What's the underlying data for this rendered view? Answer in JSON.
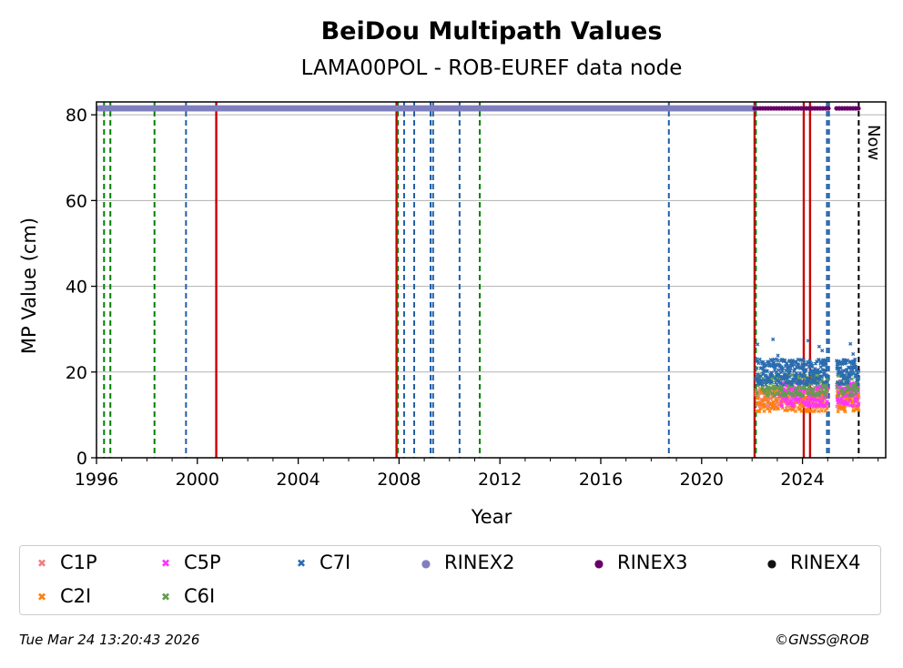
{
  "chart_data": {
    "type": "scatter",
    "title": "BeiDou Multipath Values",
    "subtitle": "LAMA00POL - ROB-EUREF data node",
    "xlabel": "Year",
    "ylabel": "MP Value (cm)",
    "xlim": [
      1996,
      2027.3
    ],
    "ylim": [
      0,
      83
    ],
    "x_ticks": [
      "1996",
      "2000",
      "2004",
      "2008",
      "2012",
      "2016",
      "2020",
      "2024"
    ],
    "y_ticks": [
      "0",
      "20",
      "40",
      "60",
      "80"
    ],
    "grid": "horizontal",
    "now_label": "Now",
    "now_x": 2026.23,
    "series": [
      {
        "name": "C1P",
        "marker": "x",
        "color": "#f08080",
        "x_range": [
          2022.15,
          2026.23
        ],
        "y_center": 14,
        "y_spread": 2.5
      },
      {
        "name": "C2I",
        "marker": "x",
        "color": "#ff7f0e",
        "x_range": [
          2022.15,
          2026.23
        ],
        "y_center": 13.5,
        "y_spread": 2.8
      },
      {
        "name": "C5P",
        "marker": "x",
        "color": "#ff33ff",
        "x_range": [
          2023.1,
          2026.23
        ],
        "y_center": 15,
        "y_spread": 3
      },
      {
        "name": "C6I",
        "marker": "x",
        "color": "#5f9e4f",
        "x_range": [
          2022.15,
          2026.23
        ],
        "y_center": 17,
        "y_spread": 2.5
      },
      {
        "name": "C7I",
        "marker": "x",
        "color": "#2b6cb0",
        "x_range": [
          2022.15,
          2026.23
        ],
        "y_center": 20,
        "y_spread": 3
      },
      {
        "name": "RINEX2",
        "marker": "o",
        "color": "#7f7fbf",
        "x_range": [
          1996.1,
          2022.1
        ],
        "y": 81.5
      },
      {
        "name": "RINEX3",
        "marker": "o",
        "color": "#660066",
        "x_range": [
          2022.1,
          2026.23
        ],
        "y": 81.5
      },
      {
        "name": "RINEX4",
        "marker": "o",
        "color": "#111111",
        "x_range": [],
        "y": 81.5
      }
    ],
    "event_lines": [
      {
        "x": 1996.3,
        "color": "#008000",
        "style": "dashed"
      },
      {
        "x": 1996.55,
        "color": "#008000",
        "style": "dashed"
      },
      {
        "x": 1998.3,
        "color": "#008000",
        "style": "dashed"
      },
      {
        "x": 1999.55,
        "color": "#1f5fa8",
        "style": "dashed"
      },
      {
        "x": 2000.75,
        "color": "#cc0000",
        "style": "solid"
      },
      {
        "x": 2007.9,
        "color": "#cc0000",
        "style": "solid"
      },
      {
        "x": 2007.95,
        "color": "#008000",
        "style": "dashed"
      },
      {
        "x": 2008.2,
        "color": "#1f5fa8",
        "style": "dashed"
      },
      {
        "x": 2008.6,
        "color": "#1f5fa8",
        "style": "dashed"
      },
      {
        "x": 2009.25,
        "color": "#1f5fa8",
        "style": "dashed"
      },
      {
        "x": 2009.35,
        "color": "#1f5fa8",
        "style": "dashed"
      },
      {
        "x": 2010.4,
        "color": "#1f5fa8",
        "style": "dashed"
      },
      {
        "x": 2011.2,
        "color": "#008000",
        "style": "dashed"
      },
      {
        "x": 2018.7,
        "color": "#1f5fa8",
        "style": "dashed"
      },
      {
        "x": 2022.1,
        "color": "#cc0000",
        "style": "solid"
      },
      {
        "x": 2022.15,
        "color": "#008000",
        "style": "dashed"
      },
      {
        "x": 2024.05,
        "color": "#cc0000",
        "style": "solid"
      },
      {
        "x": 2024.3,
        "color": "#cc0000",
        "style": "solid"
      },
      {
        "x": 2024.97,
        "color": "#1f5fa8",
        "style": "dashed"
      },
      {
        "x": 2025.05,
        "color": "#1f5fa8",
        "style": "dashed"
      },
      {
        "x": 2026.23,
        "color": "#000000",
        "style": "dashed"
      }
    ]
  },
  "legend": {
    "items": [
      {
        "label": "C1P",
        "symbol": "✖",
        "color": "#f08080"
      },
      {
        "label": "C5P",
        "symbol": "✖",
        "color": "#ff33ff"
      },
      {
        "label": "C7I",
        "symbol": "✖",
        "color": "#2b6cb0"
      },
      {
        "label": "RINEX2",
        "symbol": "●",
        "color": "#7f7fbf"
      },
      {
        "label": "RINEX3",
        "symbol": "●",
        "color": "#660066"
      },
      {
        "label": "RINEX4",
        "symbol": "●",
        "color": "#111111"
      },
      {
        "label": "C2I",
        "symbol": "✖",
        "color": "#ff7f0e"
      },
      {
        "label": "C6I",
        "symbol": "✖",
        "color": "#5f9e4f"
      }
    ]
  },
  "footer": {
    "timestamp": "Tue Mar 24 13:20:43 2026",
    "credit": "©GNSS@ROB"
  }
}
